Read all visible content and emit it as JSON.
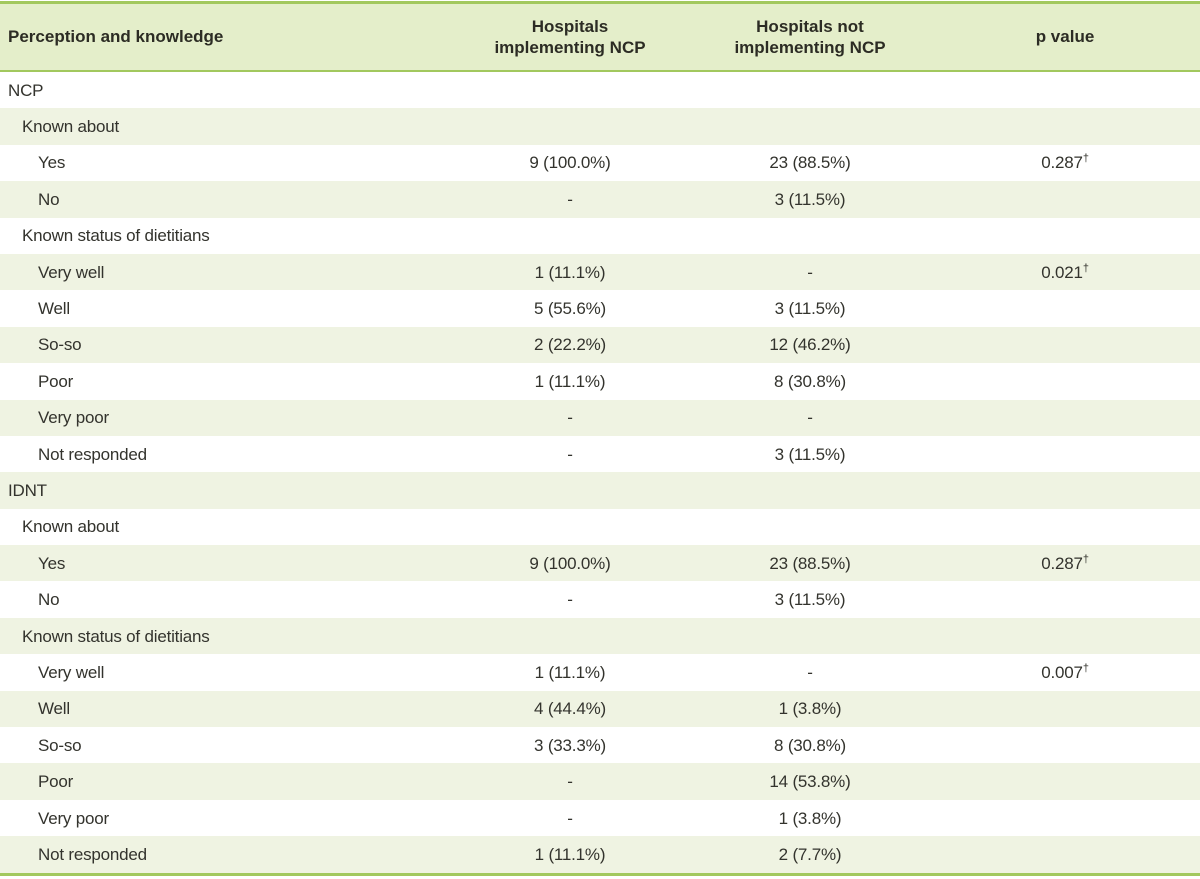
{
  "colors": {
    "border_green": "#a2c85e",
    "header_bg": "#e4eeca",
    "stripe_bg": "#eff3e2",
    "text": "#33332d"
  },
  "table": {
    "header": {
      "perception": "Perception and knowledge",
      "implementing": "Hospitals\nimplementing NCP",
      "not_implementing": "Hospitals not\nimplementing NCP",
      "p_value": "p value"
    },
    "rows": [
      {
        "label": "NCP",
        "indent": 0,
        "implementing": "",
        "not_implementing": "",
        "p": "",
        "p_sup": ""
      },
      {
        "label": "Known about",
        "indent": 1,
        "implementing": "",
        "not_implementing": "",
        "p": "",
        "p_sup": ""
      },
      {
        "label": "Yes",
        "indent": 2,
        "implementing": "9 (100.0%)",
        "not_implementing": "23 (88.5%)",
        "p": "0.287",
        "p_sup": "†"
      },
      {
        "label": "No",
        "indent": 2,
        "implementing": "-",
        "not_implementing": "3 (11.5%)",
        "p": "",
        "p_sup": ""
      },
      {
        "label": "Known status of dietitians",
        "indent": 1,
        "implementing": "",
        "not_implementing": "",
        "p": "",
        "p_sup": ""
      },
      {
        "label": "Very well",
        "indent": 2,
        "implementing": "1 (11.1%)",
        "not_implementing": "-",
        "p": "0.021",
        "p_sup": "†"
      },
      {
        "label": "Well",
        "indent": 2,
        "implementing": "5 (55.6%)",
        "not_implementing": "3 (11.5%)",
        "p": "",
        "p_sup": ""
      },
      {
        "label": "So-so",
        "indent": 2,
        "implementing": "2 (22.2%)",
        "not_implementing": "12 (46.2%)",
        "p": "",
        "p_sup": ""
      },
      {
        "label": "Poor",
        "indent": 2,
        "implementing": "1 (11.1%)",
        "not_implementing": "8 (30.8%)",
        "p": "",
        "p_sup": ""
      },
      {
        "label": "Very poor",
        "indent": 2,
        "implementing": "-",
        "not_implementing": "-",
        "p": "",
        "p_sup": ""
      },
      {
        "label": "Not responded",
        "indent": 2,
        "implementing": "-",
        "not_implementing": "3 (11.5%)",
        "p": "",
        "p_sup": ""
      },
      {
        "label": "IDNT",
        "indent": 0,
        "implementing": "",
        "not_implementing": "",
        "p": "",
        "p_sup": ""
      },
      {
        "label": "Known about",
        "indent": 1,
        "implementing": "",
        "not_implementing": "",
        "p": "",
        "p_sup": ""
      },
      {
        "label": "Yes",
        "indent": 2,
        "implementing": "9 (100.0%)",
        "not_implementing": "23 (88.5%)",
        "p": "0.287",
        "p_sup": "†"
      },
      {
        "label": "No",
        "indent": 2,
        "implementing": "-",
        "not_implementing": "3 (11.5%)",
        "p": "",
        "p_sup": ""
      },
      {
        "label": "Known status of dietitians",
        "indent": 1,
        "implementing": "",
        "not_implementing": "",
        "p": "",
        "p_sup": ""
      },
      {
        "label": "Very well",
        "indent": 2,
        "implementing": "1 (11.1%)",
        "not_implementing": "-",
        "p": "0.007",
        "p_sup": "†"
      },
      {
        "label": "Well",
        "indent": 2,
        "implementing": "4 (44.4%)",
        "not_implementing": "1 (3.8%)",
        "p": "",
        "p_sup": ""
      },
      {
        "label": "So-so",
        "indent": 2,
        "implementing": "3 (33.3%)",
        "not_implementing": "8 (30.8%)",
        "p": "",
        "p_sup": ""
      },
      {
        "label": "Poor",
        "indent": 2,
        "implementing": "-",
        "not_implementing": "14 (53.8%)",
        "p": "",
        "p_sup": ""
      },
      {
        "label": "Very poor",
        "indent": 2,
        "implementing": "-",
        "not_implementing": "1 (3.8%)",
        "p": "",
        "p_sup": ""
      },
      {
        "label": "Not responded",
        "indent": 2,
        "implementing": "1 (11.1%)",
        "not_implementing": "2 (7.7%)",
        "p": "",
        "p_sup": ""
      }
    ]
  }
}
